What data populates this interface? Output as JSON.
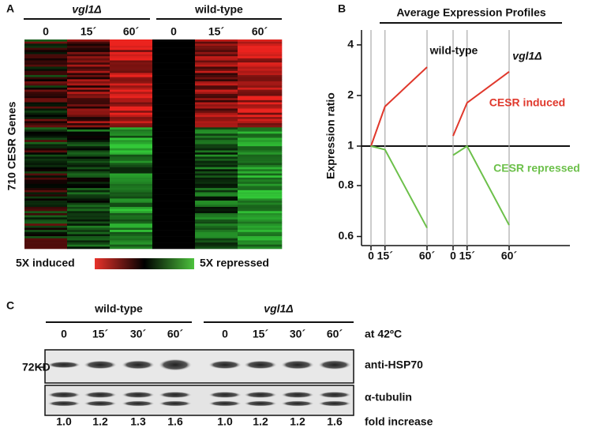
{
  "panel_a": {
    "label": "A",
    "groups": [
      "vgl1Δ",
      "wild-type"
    ],
    "times": [
      "0",
      "15´",
      "60´",
      "0",
      "15´",
      "60´"
    ],
    "ylabel": "710 CESR Genes",
    "scale_low": "5X induced",
    "scale_high": "5X repressed"
  },
  "chart_data": {
    "type": "line",
    "panel_label": "B",
    "title": "Average Expression Profiles",
    "ylabel": "Expression ratio",
    "ylog": true,
    "ylim": [
      0.57,
      4.8
    ],
    "yticks": [
      0.6,
      0.8,
      1,
      2,
      4
    ],
    "reference_line": 1,
    "groups": [
      {
        "name": "wild-type",
        "xticks": [
          0,
          {
            "value": 15,
            "label": "15´"
          },
          {
            "value": 60,
            "label": "60´"
          }
        ]
      },
      {
        "name": "vgl1Δ",
        "xticks": [
          0,
          {
            "value": 15,
            "label": "15´"
          },
          {
            "value": 60,
            "label": "60´"
          }
        ]
      }
    ],
    "series": [
      {
        "name": "CESR induced",
        "color": "#e0382c",
        "values": [
          [
            1,
            1.72,
            2.95
          ],
          [
            1.15,
            1.81,
            2.77
          ]
        ]
      },
      {
        "name": "CESR repressed",
        "color": "#6cc04a",
        "values": [
          [
            1,
            0.98,
            0.63
          ],
          [
            0.95,
            1,
            0.64
          ]
        ]
      }
    ]
  },
  "panel_c": {
    "label": "C",
    "groups": [
      "wild-type",
      "vgl1Δ"
    ],
    "times": [
      "0",
      "15´",
      "30´",
      "60´",
      "0",
      "15´",
      "30´",
      "60´"
    ],
    "condition": "at 42ºC",
    "marker": "72KD",
    "blots": [
      "anti-HSP70",
      "α-tubulin"
    ],
    "fold": [
      "1.0",
      "1.2",
      "1.3",
      "1.6",
      "1.0",
      "1.2",
      "1.2",
      "1.6"
    ],
    "fold_label": "fold increase"
  }
}
